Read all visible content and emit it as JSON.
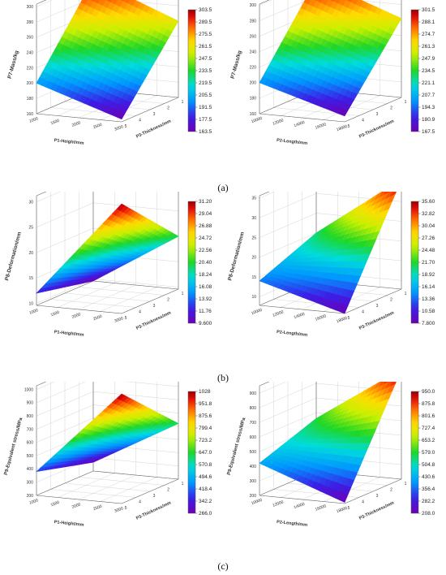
{
  "captions": [
    "(a)",
    "(b)",
    "(c)"
  ],
  "chart_data": [
    {
      "type": "surface",
      "zlabel": "P7-Mass/kg",
      "xlabel": "P1-Height/mm",
      "ylabel": "P3-Thickness/mm",
      "zticks": [
        "160",
        "180",
        "200",
        "220",
        "240",
        "260",
        "280",
        "300"
      ],
      "xticks": [
        "1000",
        "1500",
        "2000",
        "2500",
        "3000"
      ],
      "yticks": [
        "1",
        "2",
        "3",
        "4",
        "5"
      ],
      "colorbar_ticks": [
        "303.5",
        "289.5",
        "275.5",
        "261.5",
        "247.5",
        "233.5",
        "219.5",
        "205.5",
        "191.5",
        "177.5",
        "163.5"
      ],
      "surface_corners_z": {
        "x0y0": 163.5,
        "x1y0": 200,
        "x0y1": 260,
        "x1y1": 303.5
      }
    },
    {
      "type": "surface",
      "zlabel": "P7-Mass/kg",
      "xlabel": "P2-Length/mm",
      "ylabel": "P3-Thickness/mm",
      "zticks": [
        "160",
        "180",
        "200",
        "220",
        "240",
        "260",
        "280",
        "300"
      ],
      "xticks": [
        "10000",
        "12000",
        "14000",
        "16000",
        "18000"
      ],
      "yticks": [
        "1",
        "2",
        "3",
        "4",
        "5"
      ],
      "colorbar_ticks": [
        "301.5",
        "288.1",
        "274.7",
        "261.3",
        "247.9",
        "234.5",
        "221.1",
        "207.7",
        "194.3",
        "180.9",
        "167.5"
      ],
      "surface_corners_z": {
        "x0y0": 167.5,
        "x1y0": 200,
        "x0y1": 262,
        "x1y1": 301.5
      }
    },
    {
      "type": "surface",
      "zlabel": "P8-Deformation/mm",
      "xlabel": "P1-Height/mm",
      "ylabel": "P3-Thickness/mm",
      "zticks": [
        "10",
        "15",
        "20",
        "25",
        "30"
      ],
      "xticks": [
        "1000",
        "1500",
        "2000",
        "2500",
        "3000"
      ],
      "yticks": [
        "1",
        "2",
        "3",
        "4",
        "5"
      ],
      "colorbar_ticks": [
        "31.20",
        "29.04",
        "26.88",
        "24.72",
        "22.56",
        "20.40",
        "18.24",
        "16.08",
        "13.92",
        "11.76",
        "9.600"
      ],
      "surface_corners_z": {
        "x0y0": 31.2,
        "x1y0": 12,
        "x0y1": 20,
        "x1y1": 9.6
      }
    },
    {
      "type": "surface",
      "zlabel": "P8-Deformation/mm",
      "xlabel": "P2-Length/mm",
      "ylabel": "P3-Thickness/mm",
      "zticks": [
        "10",
        "15",
        "20",
        "25",
        "30",
        "35"
      ],
      "xticks": [
        "10000",
        "12000",
        "14000",
        "16000",
        "18000"
      ],
      "yticks": [
        "1",
        "2",
        "3",
        "4",
        "5"
      ],
      "colorbar_ticks": [
        "35.60",
        "32.82",
        "30.04",
        "27.26",
        "24.48",
        "21.70",
        "18.92",
        "16.14",
        "13.36",
        "10.58",
        "7.800"
      ],
      "surface_corners_z": {
        "x0y0": 7.8,
        "x1y0": 14,
        "x0y1": 35.6,
        "x1y1": 20
      }
    },
    {
      "type": "surface",
      "zlabel": "P9-Equivalent stress/MPa",
      "xlabel": "P1-Height/mm",
      "ylabel": "P3-Thickness/mm",
      "zticks": [
        "200",
        "300",
        "400",
        "500",
        "600",
        "700",
        "800",
        "900",
        "1000"
      ],
      "xticks": [
        "1000",
        "1500",
        "2000",
        "2500",
        "3000"
      ],
      "yticks": [
        "1",
        "2",
        "3",
        "4",
        "5"
      ],
      "colorbar_ticks": [
        "1028",
        "951.8",
        "875.6",
        "799.4",
        "723.2",
        "647.0",
        "570.8",
        "494.6",
        "418.4",
        "342.2",
        "266.0"
      ],
      "surface_corners_z": {
        "x0y0": 1028,
        "x1y0": 380,
        "x0y1": 620,
        "x1y1": 266
      }
    },
    {
      "type": "surface",
      "zlabel": "P9-Equivalent stress/MPa",
      "xlabel": "P2-Length/mm",
      "ylabel": "P3-Thickness/mm",
      "zticks": [
        "200",
        "300",
        "400",
        "500",
        "600",
        "700",
        "800",
        "900"
      ],
      "xticks": [
        "10000",
        "12000",
        "14000",
        "16000",
        "18000"
      ],
      "yticks": [
        "1",
        "2",
        "3",
        "4",
        "5"
      ],
      "colorbar_ticks": [
        "950.0",
        "875.8",
        "801.6",
        "727.4",
        "653.2",
        "579.0",
        "504.8",
        "430.6",
        "356.4",
        "282.2",
        "208.0"
      ],
      "surface_corners_z": {
        "x0y0": 208,
        "x1y0": 420,
        "x0y1": 950,
        "x1y1": 560
      }
    }
  ]
}
